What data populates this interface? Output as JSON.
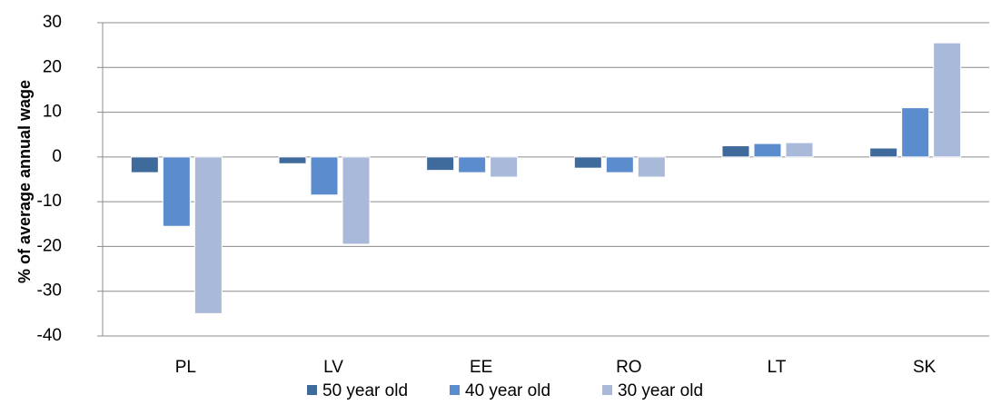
{
  "chart_data": {
    "type": "bar",
    "y_label": "% of average annual wage",
    "categories": [
      "PL",
      "LV",
      "EE",
      "RO",
      "LT",
      "SK"
    ],
    "series": [
      {
        "name": "50 year old",
        "color": "#3f6a9c",
        "values": [
          -3.5,
          -1.5,
          -3,
          -2.5,
          2.5,
          2
        ]
      },
      {
        "name": "40 year old",
        "color": "#5a8cce",
        "values": [
          -15.5,
          -8.5,
          -3.5,
          -3.5,
          3,
          11
        ]
      },
      {
        "name": "30 year old",
        "color": "#a9b9da",
        "values": [
          -35,
          -19.5,
          -4.5,
          -4.5,
          3.2,
          25.5
        ]
      }
    ],
    "ylim": [
      -40,
      30
    ],
    "yticks": [
      -40,
      -30,
      -20,
      -10,
      0,
      10,
      20,
      30
    ],
    "grid": true,
    "legend": "bottom"
  }
}
